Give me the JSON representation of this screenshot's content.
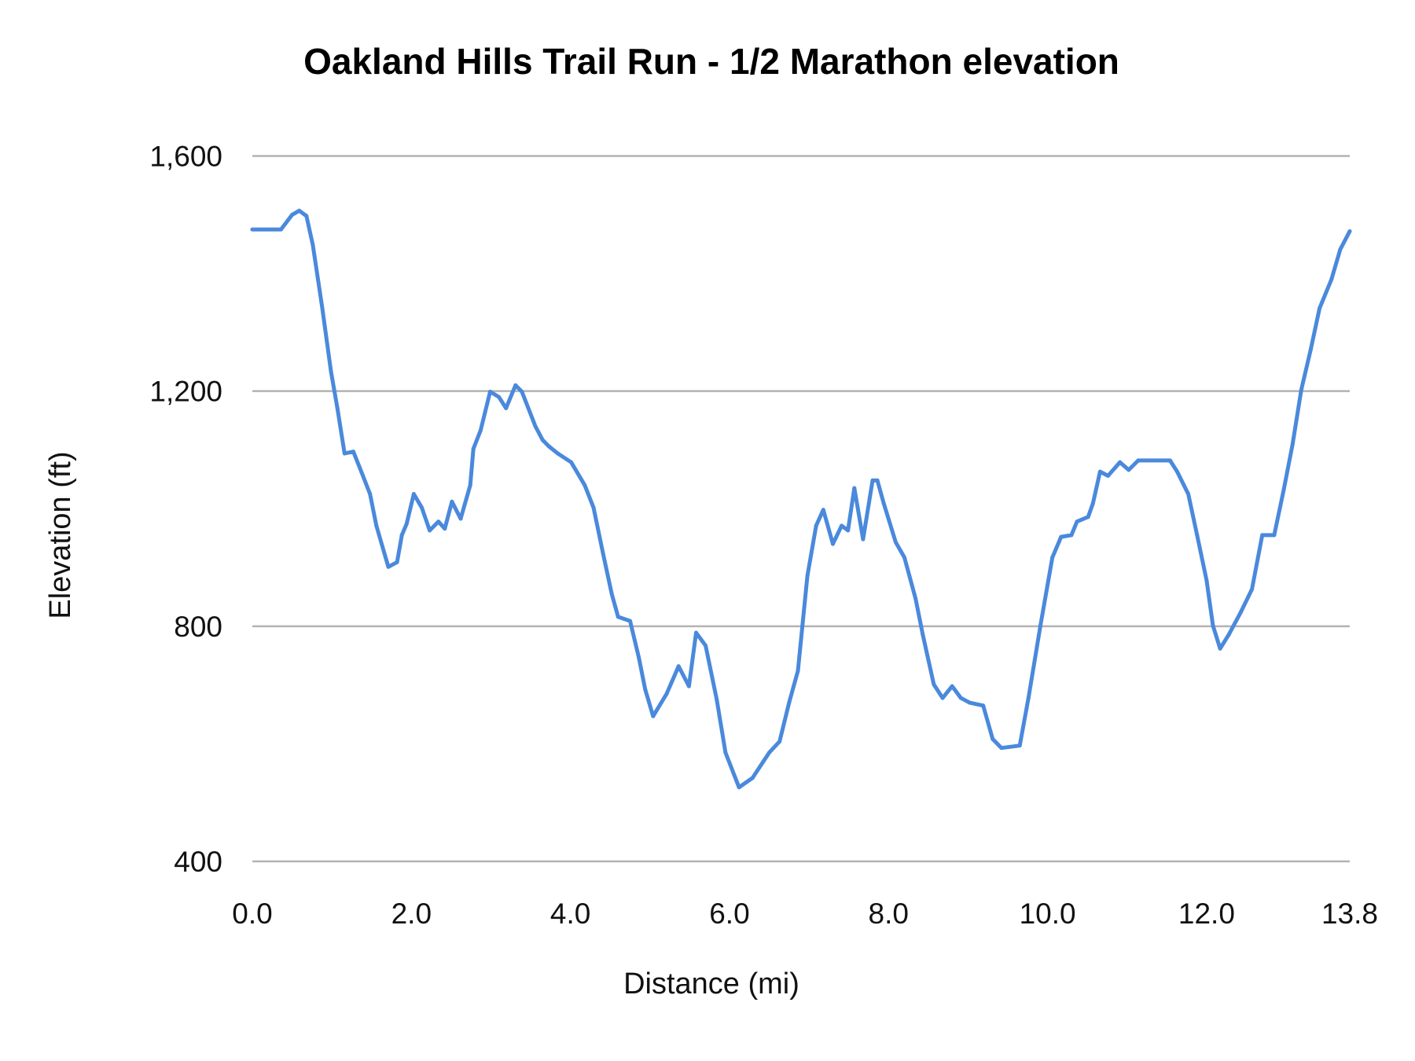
{
  "chart_data": {
    "type": "line",
    "title": "Oakland Hills Trail Run - 1/2 Marathon elevation",
    "xlabel": "Distance (mi)",
    "ylabel": "Elevation (ft)",
    "xlim": [
      0,
      13.8
    ],
    "ylim": [
      400,
      1600
    ],
    "x_ticks": [
      "0.0",
      "2.0",
      "4.0",
      "6.0",
      "8.0",
      "10.0",
      "12.0",
      "13.8"
    ],
    "x_tick_values": [
      0,
      2,
      4,
      6,
      8,
      10,
      12,
      13.8
    ],
    "y_ticks": [
      "400",
      "800",
      "1,200",
      "1,600"
    ],
    "y_tick_values": [
      400,
      800,
      1200,
      1600
    ],
    "grid": "horizontal",
    "line_color": "#4a89dc",
    "series": [
      {
        "x": [
          0,
          0.36,
          0.5,
          0.59,
          0.68,
          0.76,
          0.88,
          0.99,
          1.07,
          1.16,
          1.27,
          1.37,
          1.48,
          1.56,
          1.71,
          1.82,
          1.88,
          1.94,
          2.03,
          2.13,
          2.23,
          2.34,
          2.42,
          2.51,
          2.62,
          2.74,
          2.78,
          2.87,
          2.99,
          3.1,
          3.19,
          3.31,
          3.39,
          3.56,
          3.65,
          3.73,
          3.84,
          4.01,
          4.18,
          4.29,
          4.41,
          4.52,
          4.6,
          4.75,
          4.86,
          4.94,
          5.04,
          5.21,
          5.36,
          5.49,
          5.58,
          5.7,
          5.84,
          5.95,
          6.12,
          6.29,
          6.5,
          6.63,
          6.75,
          6.86,
          6.98,
          7.09,
          7.18,
          7.3,
          7.41,
          7.49,
          7.57,
          7.68,
          7.8,
          7.86,
          7.94,
          8.09,
          8.2,
          8.34,
          8.43,
          8.57,
          8.68,
          8.8,
          8.91,
          9.02,
          9.19,
          9.31,
          9.42,
          9.65,
          9.76,
          9.91,
          10.06,
          10.17,
          10.3,
          10.37,
          10.51,
          10.57,
          10.66,
          10.76,
          10.91,
          11.02,
          11.14,
          11.54,
          11.63,
          11.77,
          11.88,
          12.0,
          12.08,
          12.17,
          12.28,
          12.43,
          12.57,
          12.7,
          12.85,
          12.97,
          13.08,
          13.19,
          13.31,
          13.42,
          13.57,
          13.68,
          13.8
        ],
        "y": [
          1475,
          1475,
          1500,
          1507,
          1498,
          1449,
          1341,
          1233,
          1171,
          1094,
          1097,
          1063,
          1025,
          971,
          901,
          909,
          955,
          974,
          1025,
          1002,
          963,
          978,
          966,
          1012,
          983,
          1040,
          1102,
          1133,
          1199,
          1190,
          1171,
          1210,
          1199,
          1140,
          1117,
          1106,
          1094,
          1079,
          1040,
          1002,
          924,
          855,
          816,
          809,
          747,
          693,
          647,
          685,
          732,
          698,
          789,
          767,
          675,
          585,
          526,
          542,
          585,
          604,
          670,
          724,
          886,
          971,
          998,
          940,
          971,
          963,
          1035,
          948,
          1048,
          1048,
          1009,
          943,
          917,
          847,
          786,
          701,
          678,
          698,
          678,
          670,
          665,
          608,
          593,
          597,
          678,
          801,
          917,
          952,
          955,
          978,
          986,
          1009,
          1063,
          1056,
          1079,
          1066,
          1082,
          1082,
          1063,
          1025,
          955,
          878,
          801,
          762,
          786,
          824,
          863,
          955,
          955,
          1032,
          1109,
          1202,
          1271,
          1341,
          1390,
          1441,
          1472
        ]
      }
    ]
  }
}
